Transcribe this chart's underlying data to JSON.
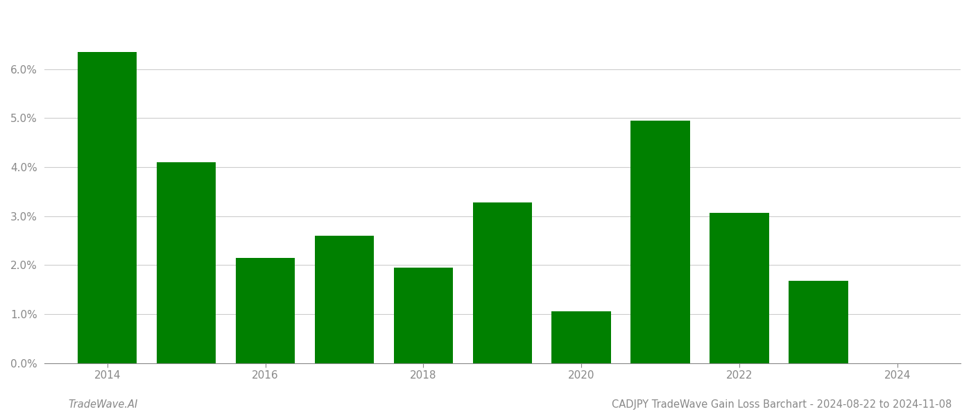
{
  "years": [
    2014,
    2015,
    2016,
    2017,
    2018,
    2019,
    2020,
    2021,
    2022,
    2023
  ],
  "values": [
    0.0635,
    0.041,
    0.0215,
    0.026,
    0.0195,
    0.0328,
    0.0105,
    0.0495,
    0.0307,
    0.0168
  ],
  "bar_color": "#008000",
  "bar_width": 0.75,
  "xlim": [
    2013.2,
    2024.8
  ],
  "ylim": [
    0,
    0.072
  ],
  "yticks": [
    0.0,
    0.01,
    0.02,
    0.03,
    0.04,
    0.05,
    0.06
  ],
  "xticks": [
    2014,
    2016,
    2018,
    2020,
    2022,
    2024
  ],
  "background_color": "#ffffff",
  "grid_color": "#cccccc",
  "tick_color": "#888888",
  "footer_left": "TradeWave.AI",
  "footer_right": "CADJPY TradeWave Gain Loss Barchart - 2024-08-22 to 2024-11-08",
  "footer_fontsize": 10.5,
  "axis_fontsize": 11
}
